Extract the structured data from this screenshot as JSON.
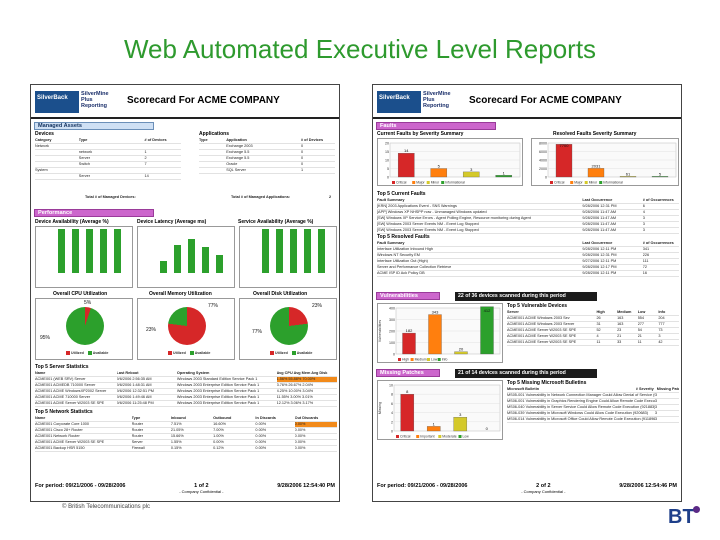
{
  "slide_title": "Web Automated Executive Level Reports",
  "copyright": "© British Telecommunications plc",
  "bt_logo": "BT",
  "brand": {
    "logo_text": "SilverBack",
    "product_line1": "SilverMine",
    "product_line2": "Plus",
    "product_line3": "Reporting"
  },
  "colors": {
    "title": "#2e9a2e",
    "accent": "#cc66cc",
    "highlight": "#f28a1a",
    "critical": "#d62728",
    "major": "#ff7f0e",
    "minor": "#d4c92a",
    "informational": "#2ca02c",
    "good": "#2ca02c"
  },
  "left": {
    "header": "Scorecard For ACME COMPANY",
    "managed_assets": "Managed Assets",
    "devices_label": "Devices",
    "applications_label": "Applications",
    "device_cols": [
      "Category",
      "Type",
      "# of Devices"
    ],
    "device_rows": [
      [
        "Network",
        "",
        ""
      ],
      [
        "",
        "network",
        "1"
      ],
      [
        "",
        "Server",
        "2"
      ],
      [
        "",
        "Switch",
        "7"
      ],
      [
        "System",
        "",
        ""
      ],
      [
        "",
        "Server",
        "14"
      ]
    ],
    "app_cols": [
      "Type",
      "Application",
      "# of Devices"
    ],
    "app_rows": [
      [
        "",
        "Exchange 2003",
        "0"
      ],
      [
        "",
        "Exchange 5.5",
        "0"
      ],
      [
        "",
        "Exchange 5.5",
        "0"
      ],
      [
        "",
        "Oracle",
        "0"
      ],
      [
        "",
        "SQL Server",
        "1"
      ]
    ],
    "total_devices": "Total # of Managed Devices:",
    "total_apps": "Total # of Managed Applications:",
    "total_apps_value": "2",
    "performance": "Performance",
    "chart_titles": [
      "Device Availability (Average %)",
      "Device Latency (Average ms)",
      "Service Availability (Average %)"
    ],
    "cpu": "Overall CPU Utilization",
    "memory": "Overall Memory Utilization",
    "disk": "Overall Disk Utilization",
    "cpu_values": [
      "5%",
      "95%"
    ],
    "memory_values": [
      "77%",
      "23%"
    ],
    "disk_values": [
      "23%",
      "77%"
    ],
    "pie_legend": [
      "Utilized",
      "Available"
    ],
    "server_stats": "Top 5 Server Statistics",
    "server_cols": [
      "Name",
      "Last Reboot",
      "Operating System",
      "Avg CPU Avg Mem Avg Disk"
    ],
    "server_rows": [
      [
        "ACME001 (WEB SRV) Server",
        "9/6/2006 2:56:35 AM",
        "Windows 2003 Standard Edition Service Pack 1",
        "1.56%  55.88%  70.00%"
      ],
      [
        "ACME001 ACMEDB 710000 Server",
        "9/6/2006 1:48:31 AM",
        "Windows 2003 Enterprise Edition Service Pack 1",
        "3.76%  26.67%  2.04%"
      ],
      [
        "ACME001 ACME WindowsXP2002 Server",
        "9/6/2006 12:32:51 PM",
        "Windows 2003 Enterprise Edition Service Pack 1",
        "4.25%  10.00%  3.04%"
      ],
      [
        "ACME001 ACME 710000 Server",
        "9/6/2006 1:49:46 AM",
        "Windows 2003 Enterprise Edition Service Pack 1",
        "11.55%  3.00%  3.01%"
      ],
      [
        "ACME001 ACME Server W2003 SE SPE",
        "9/6/2006 11:25:48 PM",
        "Windows 2003 Enterprise Edition Service Pack 1",
        "12.12%  3.06%  3.17%"
      ]
    ],
    "network_stats": "Top 5 Network Statistics",
    "network_cols": [
      "Name",
      "Type",
      "Inbound",
      "Outbound",
      "In Discards",
      "Out Discards"
    ],
    "network_rows": [
      [
        "ACME001 Corporate Core 1000",
        "Router",
        "7.51%",
        "16.60%",
        "0.00%",
        "0.00%"
      ],
      [
        "ACME001 Cisco 28+ Router",
        "Router",
        "21.05%",
        "7.00%",
        "0.00%",
        "0.00%"
      ],
      [
        "ACME001 Network Router",
        "Router",
        "15.66%",
        "1.00%",
        "0.00%",
        "0.00%"
      ],
      [
        "ACME001 ACME Server W2003 SE SPE",
        "Server",
        "1.55%",
        "0.00%",
        "0.00%",
        "0.00%"
      ],
      [
        "ACME001 Backup HSR 5150",
        "Firewall",
        "0.15%",
        "0.12%",
        "0.00%",
        "0.00%"
      ]
    ],
    "footer_period": "For period: 09/21/2006 - 09/28/2006",
    "footer_page": "1 of 2",
    "footer_confidential": "- Company Confidential -",
    "footer_printed": "9/28/2006 12:54:40 PM"
  },
  "right": {
    "header": "Scorecard For ACME COMPANY",
    "faults": "Faults",
    "current_faults": "Current Faults by Severity Summary",
    "resolved_faults": "Resolved Faults Severity Summary",
    "fault_legend": [
      "Critical",
      "Major",
      "Minor",
      "Informational"
    ],
    "top5_current": "Top 5 Current Faults",
    "current_cols": [
      "Fault Summary",
      "Last Occurrence",
      "# of Occurrences"
    ],
    "current_rows": [
      [
        "[KRN] 2003 Applications Event - SNS Warnings",
        "9/28/2006 12:31 PM",
        "6"
      ],
      [
        "[APP] Windows XP NHSPP now - Unmanaged Windows updated",
        "9/28/2006 11:47 AM",
        "4"
      ],
      [
        "[SW] Windows XP Service Errors - Agent Polling Engine, Resource monitoring during Agent",
        "9/28/2006 11:47 AM",
        "3"
      ],
      [
        "[SW] Windows 2003 Server Events NM - Event Log Stopped",
        "9/28/2006 11:47 AM",
        "3"
      ],
      [
        "[SW] Windows 2003 Server Events NM - Event Log Stopped",
        "9/28/2006 11:47 AM",
        "3"
      ]
    ],
    "top5_resolved": "Top 5 Resolved Faults",
    "resolved_cols": [
      "Fault Summary",
      "Last Occurrence",
      "# of Occurrences"
    ],
    "resolved_rows": [
      [
        "Interface Utilization Inbound High",
        "9/28/2006 12:11 PM",
        "341"
      ],
      [
        "Windows NT Security EM",
        "9/28/2006 12:31 PM",
        "226"
      ],
      [
        "Interface Utilization Out (High)",
        "9/27/2006 12:11 PM",
        "111"
      ],
      [
        "Server and Performance Collection Retrieve",
        "9/28/2006 12:17 PM",
        "72"
      ],
      [
        "ACME ISP ID Ack Policy DB",
        "9/28/2006 12:11 PM",
        "16"
      ]
    ],
    "vulnerabilities": "Vulnerabilities",
    "vuln_scan": "22 of 36 devices scanned during this period",
    "vuln_top5": "Top 5 Vulnerable Devices",
    "vuln_cols": [
      "Server",
      "High",
      "Medium",
      "Low",
      "Info"
    ],
    "vuln_rows": [
      [
        "ACME001 ACME Windows 2003 Sev",
        "26",
        "163",
        "554",
        "204"
      ],
      [
        "ACME001 ACME Windows 2003 Server",
        "31",
        "163",
        "277",
        "777"
      ],
      [
        "ACME001 ACME Server W2003 SE SPE",
        "52",
        "23",
        "54",
        "73"
      ],
      [
        "ACME001 ACME Server W2003 SE SPE",
        "4",
        "21",
        "21",
        "3"
      ],
      [
        "ACME001 ACME Server W2003 SE SPE",
        "11",
        "33",
        "11",
        "42"
      ]
    ],
    "vuln_ylabel": "Vulnerabilities",
    "vuln_legend": [
      "High",
      "Medium",
      "Low",
      "Info"
    ],
    "missing_patches": "Missing Patches",
    "patch_scan": "21 of 14 devices scanned during this period",
    "patch_top5": "Top 5 Missing Microsoft Bulletins",
    "patch_cols": [
      "Microsoft Bulletin",
      "# Severity",
      "Missing Patch"
    ],
    "patch_rows": [
      [
        "MS05-001",
        "Vulnerability in Network Connection Manager Could Allow Denial of Service (905414)",
        "3"
      ],
      [
        "MS06-001",
        "Vulnerability in Graphics Rendering Engine Could Allow Remote Code Execution (912919)",
        "3"
      ],
      [
        "MS06-040",
        "Vulnerability in Server Service Could Allow Remote Code Execution (921883)",
        "3"
      ],
      [
        "MS06-039",
        "Vulnerability in Microsoft Windows Could Allow Code Execution (920683)",
        "3"
      ],
      [
        "MS06-014",
        "Vulnerability in Microsoft Office Could Allow Remote Code Execution (911896)",
        "3"
      ]
    ],
    "patch_ylabel": "Missing",
    "patch_legend": [
      "Critical",
      "Important",
      "Moderate",
      "Low"
    ],
    "footer_period": "For period: 09/21/2006 - 09/28/2006",
    "footer_page": "2 of 2",
    "footer_confidential": "- Company Confidential -",
    "footer_printed": "9/28/2006 12:54:46 PM"
  },
  "chart_data": [
    {
      "type": "bar",
      "title": "Current Faults by Severity Summary",
      "categories": [
        "Critical",
        "Major",
        "Minor",
        "Informational"
      ],
      "values": [
        14,
        5,
        3,
        1
      ],
      "ylim": [
        0,
        20
      ]
    },
    {
      "type": "bar",
      "title": "Resolved Faults Severity Summary",
      "categories": [
        "Critical",
        "Major",
        "Minor",
        "Informational"
      ],
      "values": [
        7700,
        2031,
        61,
        5
      ],
      "ylim": [
        0,
        8000
      ]
    },
    {
      "type": "bar",
      "title": "Vulnerabilities",
      "categories": [
        "High",
        "Medium",
        "Low",
        "Info"
      ],
      "values": [
        182,
        343,
        20,
        412
      ],
      "ylabel": "Vulnerabilities",
      "ylim": [
        0,
        400
      ]
    },
    {
      "type": "bar",
      "title": "Missing Patches",
      "categories": [
        "Critical",
        "Important",
        "Moderate",
        "Low"
      ],
      "values": [
        8,
        1,
        3,
        0
      ],
      "ylabel": "Missing",
      "ylim": [
        0,
        10
      ]
    },
    {
      "type": "pie",
      "title": "Overall CPU Utilization",
      "categories": [
        "Utilized",
        "Available"
      ],
      "values": [
        5,
        95
      ]
    },
    {
      "type": "pie",
      "title": "Overall Memory Utilization",
      "categories": [
        "Utilized",
        "Available"
      ],
      "values": [
        77,
        23
      ]
    },
    {
      "type": "pie",
      "title": "Overall Disk Utilization",
      "categories": [
        "Utilized",
        "Available"
      ],
      "values": [
        23,
        77
      ]
    }
  ]
}
